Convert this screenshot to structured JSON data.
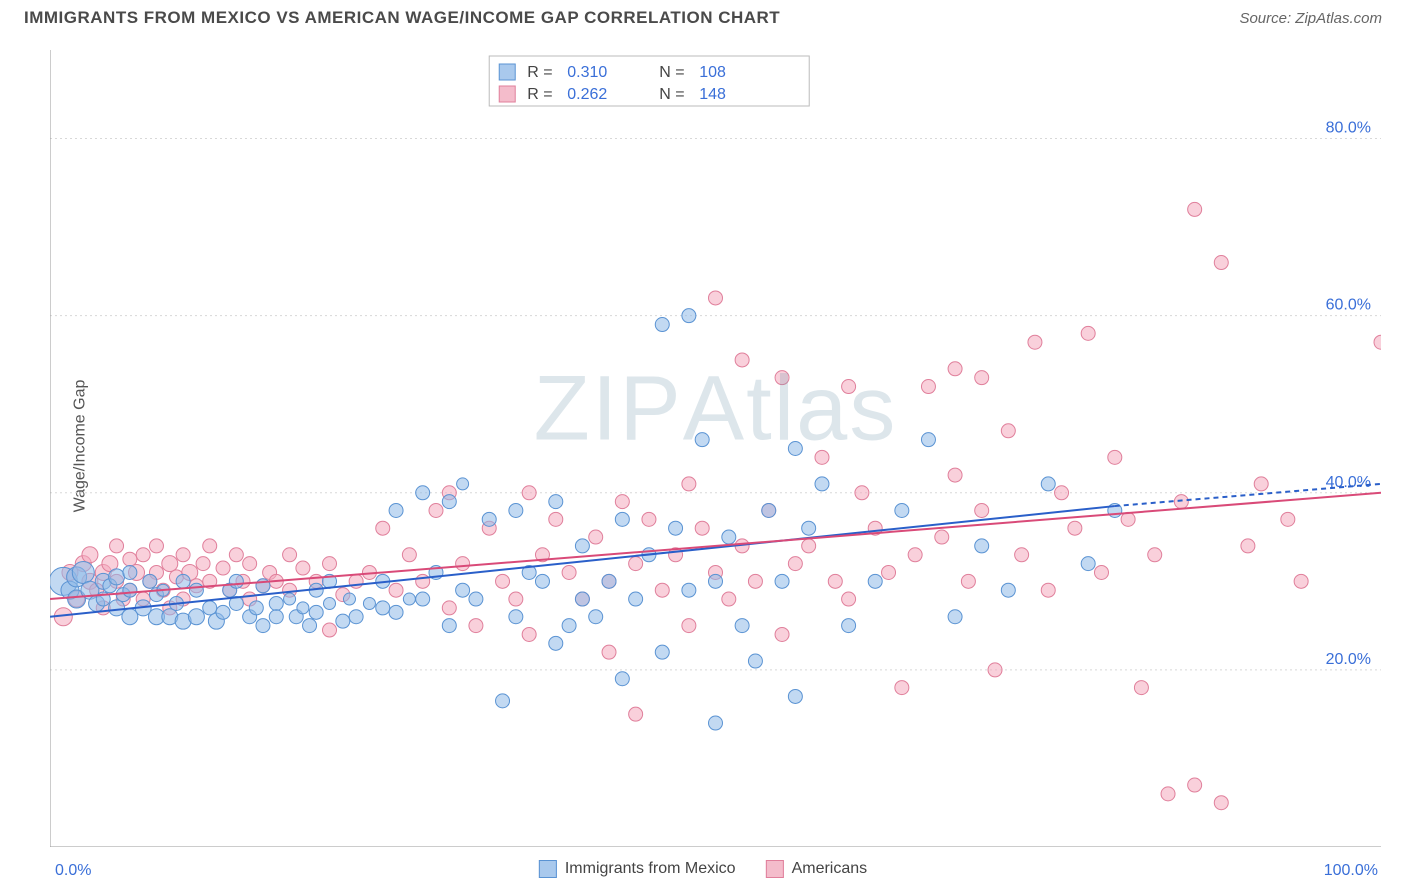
{
  "title": "IMMIGRANTS FROM MEXICO VS AMERICAN WAGE/INCOME GAP CORRELATION CHART",
  "source": "Source: ZipAtlas.com",
  "ylabel": "Wage/Income Gap",
  "watermark": "ZIPAtlas",
  "chart": {
    "type": "scatter",
    "xlim": [
      0,
      100
    ],
    "ylim": [
      0,
      90
    ],
    "xtick_labels": [
      "0.0%",
      "100.0%"
    ],
    "ytick_labels": [
      "20.0%",
      "40.0%",
      "60.0%",
      "80.0%"
    ],
    "ytick_values": [
      20,
      40,
      60,
      80
    ],
    "xtick_minor": [
      0,
      10,
      20,
      30,
      40,
      50,
      60,
      70,
      80,
      90,
      100
    ],
    "background_color": "#ffffff",
    "grid_color": "#d8d8d8",
    "axis_color": "#999999",
    "tick_label_color": "#3a6fd8",
    "series": [
      {
        "name": "Immigrants from Mexico",
        "color_fill": "rgba(144, 186, 232, 0.55)",
        "color_stroke": "#5a93d3",
        "swatch_fill": "#a9c9ed",
        "swatch_border": "#5a93d3",
        "R": "0.310",
        "N": "108",
        "trend": {
          "x1": 0,
          "y1": 26,
          "x2": 80,
          "y2": 38.5,
          "dash_x2": 100,
          "dash_y2": 41,
          "color": "#2a5fc9",
          "width": 2
        },
        "points": [
          [
            1,
            30,
            14
          ],
          [
            1.5,
            29,
            9
          ],
          [
            2,
            30.5,
            10
          ],
          [
            2,
            28,
            9
          ],
          [
            2.5,
            31,
            11
          ],
          [
            3,
            29,
            9
          ],
          [
            3.5,
            27.5,
            8
          ],
          [
            4,
            30,
            8
          ],
          [
            4,
            28,
            7
          ],
          [
            4.5,
            29.5,
            7
          ],
          [
            5,
            30.5,
            8
          ],
          [
            5,
            27,
            8
          ],
          [
            5.5,
            28.5,
            7
          ],
          [
            6,
            29,
            7
          ],
          [
            6,
            26,
            8
          ],
          [
            6,
            31,
            7
          ],
          [
            7,
            27,
            8
          ],
          [
            7.5,
            30,
            7
          ],
          [
            8,
            26,
            8
          ],
          [
            8,
            28.5,
            7
          ],
          [
            8.5,
            29,
            6
          ],
          [
            9,
            26,
            8
          ],
          [
            9.5,
            27.5,
            7
          ],
          [
            10,
            30,
            7
          ],
          [
            10,
            25.5,
            8
          ],
          [
            11,
            26,
            8
          ],
          [
            11,
            29,
            7
          ],
          [
            12,
            27,
            7
          ],
          [
            12.5,
            25.5,
            8
          ],
          [
            13,
            26.5,
            7
          ],
          [
            13.5,
            29,
            7
          ],
          [
            14,
            27.5,
            7
          ],
          [
            14,
            30,
            7
          ],
          [
            15,
            26,
            7
          ],
          [
            15.5,
            27,
            7
          ],
          [
            16,
            29.5,
            7
          ],
          [
            16,
            25,
            7
          ],
          [
            17,
            27.5,
            7
          ],
          [
            17,
            26,
            7
          ],
          [
            18,
            28,
            6
          ],
          [
            18.5,
            26,
            7
          ],
          [
            19,
            27,
            6
          ],
          [
            19.5,
            25,
            7
          ],
          [
            20,
            29,
            7
          ],
          [
            20,
            26.5,
            7
          ],
          [
            21,
            27.5,
            6
          ],
          [
            21,
            30,
            7
          ],
          [
            22,
            25.5,
            7
          ],
          [
            22.5,
            28,
            6
          ],
          [
            23,
            26,
            7
          ],
          [
            24,
            27.5,
            6
          ],
          [
            25,
            30,
            7
          ],
          [
            25,
            27,
            7
          ],
          [
            26,
            38,
            7
          ],
          [
            26,
            26.5,
            7
          ],
          [
            27,
            28,
            6
          ],
          [
            28,
            40,
            7
          ],
          [
            28,
            28,
            7
          ],
          [
            29,
            31,
            7
          ],
          [
            30,
            39,
            7
          ],
          [
            30,
            25,
            7
          ],
          [
            31,
            29,
            7
          ],
          [
            31,
            41,
            6
          ],
          [
            32,
            28,
            7
          ],
          [
            33,
            37,
            7
          ],
          [
            34,
            16.5,
            7
          ],
          [
            35,
            26,
            7
          ],
          [
            35,
            38,
            7
          ],
          [
            36,
            31,
            7
          ],
          [
            37,
            30,
            7
          ],
          [
            38,
            39,
            7
          ],
          [
            38,
            23,
            7
          ],
          [
            39,
            25,
            7
          ],
          [
            40,
            34,
            7
          ],
          [
            40,
            28,
            7
          ],
          [
            41,
            26,
            7
          ],
          [
            42,
            30,
            7
          ],
          [
            43,
            37,
            7
          ],
          [
            43,
            19,
            7
          ],
          [
            44,
            28,
            7
          ],
          [
            45,
            33,
            7
          ],
          [
            46,
            59,
            7
          ],
          [
            46,
            22,
            7
          ],
          [
            47,
            36,
            7
          ],
          [
            48,
            60,
            7
          ],
          [
            48,
            29,
            7
          ],
          [
            49,
            46,
            7
          ],
          [
            50,
            30,
            7
          ],
          [
            50,
            14,
            7
          ],
          [
            51,
            35,
            7
          ],
          [
            52,
            25,
            7
          ],
          [
            53,
            21,
            7
          ],
          [
            54,
            38,
            7
          ],
          [
            55,
            30,
            7
          ],
          [
            56,
            17,
            7
          ],
          [
            56,
            45,
            7
          ],
          [
            57,
            36,
            7
          ],
          [
            58,
            41,
            7
          ],
          [
            60,
            25,
            7
          ],
          [
            62,
            30,
            7
          ],
          [
            64,
            38,
            7
          ],
          [
            66,
            46,
            7
          ],
          [
            68,
            26,
            7
          ],
          [
            70,
            34,
            7
          ],
          [
            72,
            29,
            7
          ],
          [
            75,
            41,
            7
          ],
          [
            78,
            32,
            7
          ],
          [
            80,
            38,
            7
          ]
        ]
      },
      {
        "name": "Americans",
        "color_fill": "rgba(244, 170, 190, 0.55)",
        "color_stroke": "#e07f9b",
        "swatch_fill": "#f4bccb",
        "swatch_border": "#e07f9b",
        "R": "0.262",
        "N": "148",
        "trend": {
          "x1": 0,
          "y1": 28,
          "x2": 100,
          "y2": 40,
          "color": "#d94a78",
          "width": 2
        },
        "points": [
          [
            1,
            26,
            9
          ],
          [
            1.5,
            31,
            8
          ],
          [
            2,
            28,
            8
          ],
          [
            2.5,
            32,
            8
          ],
          [
            3,
            30,
            8
          ],
          [
            3,
            33,
            8
          ],
          [
            3.5,
            29,
            7
          ],
          [
            4,
            31,
            8
          ],
          [
            4,
            27,
            7
          ],
          [
            4.5,
            32,
            8
          ],
          [
            5,
            30,
            7
          ],
          [
            5,
            34,
            7
          ],
          [
            5.5,
            28,
            7
          ],
          [
            6,
            32.5,
            7
          ],
          [
            6,
            29,
            7
          ],
          [
            6.5,
            31,
            8
          ],
          [
            7,
            33,
            7
          ],
          [
            7,
            28,
            7
          ],
          [
            7.5,
            30,
            7
          ],
          [
            8,
            34,
            7
          ],
          [
            8,
            31,
            7
          ],
          [
            8.5,
            29,
            7
          ],
          [
            9,
            32,
            8
          ],
          [
            9,
            27,
            7
          ],
          [
            9.5,
            30.5,
            7
          ],
          [
            10,
            33,
            7
          ],
          [
            10,
            28,
            7
          ],
          [
            10.5,
            31,
            8
          ],
          [
            11,
            29.5,
            7
          ],
          [
            11.5,
            32,
            7
          ],
          [
            12,
            30,
            7
          ],
          [
            12,
            34,
            7
          ],
          [
            13,
            31.5,
            7
          ],
          [
            13.5,
            29,
            7
          ],
          [
            14,
            33,
            7
          ],
          [
            14.5,
            30,
            7
          ],
          [
            15,
            32,
            7
          ],
          [
            15,
            28,
            7
          ],
          [
            16,
            29.5,
            7
          ],
          [
            16.5,
            31,
            7
          ],
          [
            17,
            30,
            7
          ],
          [
            18,
            33,
            7
          ],
          [
            18,
            29,
            7
          ],
          [
            19,
            31.5,
            7
          ],
          [
            20,
            30,
            7
          ],
          [
            21,
            32,
            7
          ],
          [
            21,
            24.5,
            7
          ],
          [
            22,
            28.5,
            7
          ],
          [
            23,
            30,
            7
          ],
          [
            24,
            31,
            7
          ],
          [
            25,
            36,
            7
          ],
          [
            26,
            29,
            7
          ],
          [
            27,
            33,
            7
          ],
          [
            28,
            30,
            7
          ],
          [
            29,
            38,
            7
          ],
          [
            30,
            27,
            7
          ],
          [
            30,
            40,
            7
          ],
          [
            31,
            32,
            7
          ],
          [
            32,
            25,
            7
          ],
          [
            33,
            36,
            7
          ],
          [
            34,
            30,
            7
          ],
          [
            35,
            28,
            7
          ],
          [
            36,
            40,
            7
          ],
          [
            36,
            24,
            7
          ],
          [
            37,
            33,
            7
          ],
          [
            38,
            37,
            7
          ],
          [
            39,
            31,
            7
          ],
          [
            40,
            28,
            7
          ],
          [
            41,
            35,
            7
          ],
          [
            42,
            30,
            7
          ],
          [
            42,
            22,
            7
          ],
          [
            43,
            39,
            7
          ],
          [
            44,
            32,
            7
          ],
          [
            44,
            15,
            7
          ],
          [
            45,
            37,
            7
          ],
          [
            46,
            29,
            7
          ],
          [
            47,
            33,
            7
          ],
          [
            48,
            41,
            7
          ],
          [
            48,
            25,
            7
          ],
          [
            49,
            36,
            7
          ],
          [
            50,
            31,
            7
          ],
          [
            50,
            62,
            7
          ],
          [
            51,
            28,
            7
          ],
          [
            52,
            55,
            7
          ],
          [
            52,
            34,
            7
          ],
          [
            53,
            30,
            7
          ],
          [
            54,
            38,
            7
          ],
          [
            55,
            24,
            7
          ],
          [
            55,
            53,
            7
          ],
          [
            56,
            32,
            7
          ],
          [
            57,
            34,
            7
          ],
          [
            58,
            44,
            7
          ],
          [
            59,
            30,
            7
          ],
          [
            60,
            52,
            7
          ],
          [
            60,
            28,
            7
          ],
          [
            61,
            40,
            7
          ],
          [
            62,
            36,
            7
          ],
          [
            63,
            31,
            7
          ],
          [
            64,
            18,
            7
          ],
          [
            65,
            33,
            7
          ],
          [
            66,
            52,
            7
          ],
          [
            67,
            35,
            7
          ],
          [
            68,
            54,
            7
          ],
          [
            68,
            42,
            7
          ],
          [
            69,
            30,
            7
          ],
          [
            70,
            53,
            7
          ],
          [
            70,
            38,
            7
          ],
          [
            71,
            20,
            7
          ],
          [
            72,
            47,
            7
          ],
          [
            73,
            33,
            7
          ],
          [
            74,
            57,
            7
          ],
          [
            75,
            29,
            7
          ],
          [
            76,
            40,
            7
          ],
          [
            77,
            36,
            7
          ],
          [
            78,
            58,
            7
          ],
          [
            79,
            31,
            7
          ],
          [
            80,
            44,
            7
          ],
          [
            81,
            37,
            7
          ],
          [
            82,
            18,
            7
          ],
          [
            83,
            33,
            7
          ],
          [
            84,
            6,
            7
          ],
          [
            85,
            39,
            7
          ],
          [
            86,
            7,
            7
          ],
          [
            86,
            72,
            7
          ],
          [
            88,
            5,
            7
          ],
          [
            88,
            66,
            7
          ],
          [
            90,
            34,
            7
          ],
          [
            91,
            41,
            7
          ],
          [
            93,
            37,
            7
          ],
          [
            94,
            30,
            7
          ],
          [
            100,
            57,
            7
          ]
        ]
      }
    ]
  },
  "top_legend": {
    "R_label": "R =",
    "N_label": "N ="
  },
  "bottom_legend": {
    "items": [
      "Immigrants from Mexico",
      "Americans"
    ]
  }
}
